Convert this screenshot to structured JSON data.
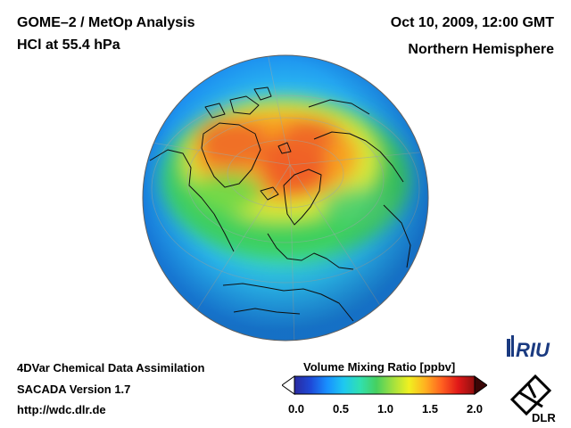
{
  "header": {
    "title_left_1": "GOME–2 / MetOp Analysis",
    "title_left_2": "HCl at 55.4 hPa",
    "title_right_1": "Oct 10, 2009, 12:00 GMT",
    "title_right_2": "Northern Hemisphere"
  },
  "footer": {
    "line_1": "4DVar Chemical Data Assimilation",
    "line_2": "SACADA Version 1.7",
    "line_3": "http://wdc.dlr.de"
  },
  "colorbar": {
    "title": "Volume Mixing Ratio [ppbv]",
    "ticks": [
      "0.0",
      "0.5",
      "1.0",
      "1.5",
      "2.0"
    ],
    "range": [
      0.0,
      2.0
    ],
    "colors": [
      "#2a2aa0",
      "#1e4ad8",
      "#1890ff",
      "#1ec8f0",
      "#30e0b0",
      "#46d060",
      "#a0e040",
      "#f0f020",
      "#ffb020",
      "#ff6020",
      "#e01818",
      "#901010"
    ]
  },
  "logos": {
    "riu": "RIU",
    "dlr": "DLR"
  },
  "map": {
    "projection": "orthographic",
    "view": "Northern Hemisphere"
  }
}
